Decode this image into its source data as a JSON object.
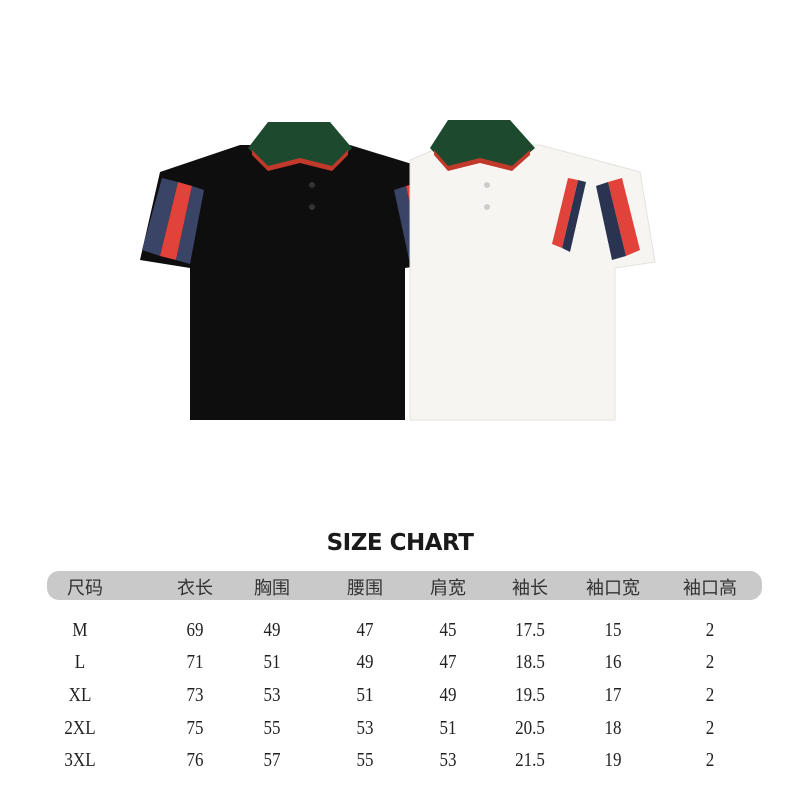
{
  "product": {
    "shirts": [
      {
        "color": "black",
        "body_hex": "#0e0e0e",
        "collar_hex": "#1d4a2e",
        "stripe_colors": [
          "#3a4466",
          "#e1423a"
        ]
      },
      {
        "color": "white",
        "body_hex": "#f6f5f2",
        "collar_hex": "#1d4a2e",
        "stripe_colors": [
          "#e1423a",
          "#2a3350"
        ]
      }
    ]
  },
  "size_chart": {
    "title": "SIZE CHART",
    "headers": [
      "尺码",
      "衣长",
      "胸围",
      "腰围",
      "肩宽",
      "袖长",
      "袖口宽",
      "袖口高"
    ],
    "rows": [
      [
        "M",
        "69",
        "49",
        "47",
        "45",
        "17.5",
        "15",
        "2"
      ],
      [
        "L",
        "71",
        "51",
        "49",
        "47",
        "18.5",
        "16",
        "2"
      ],
      [
        "XL",
        "73",
        "53",
        "51",
        "49",
        "19.5",
        "17",
        "2"
      ],
      [
        "2XL",
        "75",
        "55",
        "53",
        "51",
        "20.5",
        "18",
        "2"
      ],
      [
        "3XL",
        "76",
        "57",
        "55",
        "53",
        "21.5",
        "19",
        "2"
      ]
    ]
  }
}
